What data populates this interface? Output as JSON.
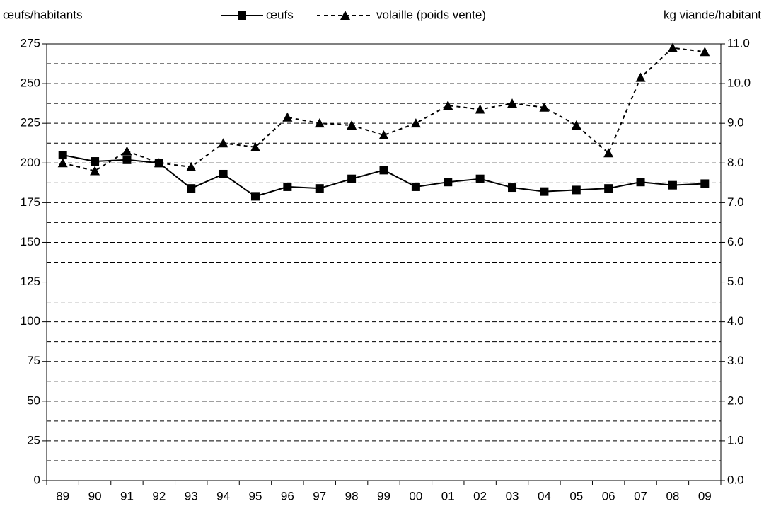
{
  "chart_data": {
    "type": "line",
    "y_label": "œufs/habitants",
    "y2_label": "kg viande/habitant",
    "categories": [
      "89",
      "90",
      "91",
      "92",
      "93",
      "94",
      "95",
      "96",
      "97",
      "98",
      "99",
      "00",
      "01",
      "02",
      "03",
      "04",
      "05",
      "06",
      "07",
      "08",
      "09"
    ],
    "series": [
      {
        "name": "œufs",
        "color": "#000000",
        "marker": "square",
        "dash": false,
        "values": [
          205,
          201,
          202,
          200,
          184,
          193,
          179,
          185,
          184,
          190,
          195.5,
          185,
          188,
          190,
          184.5,
          182,
          183,
          184,
          188,
          186,
          187
        ]
      },
      {
        "name": "volaille (poids vente)",
        "color": "#000000",
        "marker": "triangle",
        "dash": true,
        "axis": "y2",
        "values": [
          8.0,
          7.8,
          8.3,
          8.0,
          7.9,
          8.5,
          8.4,
          9.15,
          9.0,
          8.95,
          8.7,
          9.0,
          9.45,
          9.35,
          9.5,
          9.4,
          8.95,
          8.25,
          10.15,
          10.9,
          10.8
        ]
      }
    ],
    "ylim": [
      0,
      275
    ],
    "yticks": [
      0,
      25,
      50,
      75,
      100,
      125,
      150,
      175,
      200,
      225,
      250,
      275
    ],
    "y2lim": [
      0,
      11
    ],
    "y2ticks": [
      {
        "value": 0,
        "label": "0.0"
      },
      {
        "value": 1,
        "label": "1.0"
      },
      {
        "value": 2,
        "label": "2.0"
      },
      {
        "value": 3,
        "label": "3.0"
      },
      {
        "value": 4,
        "label": "4.0"
      },
      {
        "value": 5,
        "label": "5.0"
      },
      {
        "value": 6,
        "label": "6.0"
      },
      {
        "value": 7,
        "label": "7.0"
      },
      {
        "value": 8,
        "label": "8.0"
      },
      {
        "value": 9,
        "label": "9.0"
      },
      {
        "value": 10,
        "label": "10.0"
      },
      {
        "value": 11,
        "label": "11.0"
      }
    ],
    "grid": true,
    "legend": "top"
  }
}
